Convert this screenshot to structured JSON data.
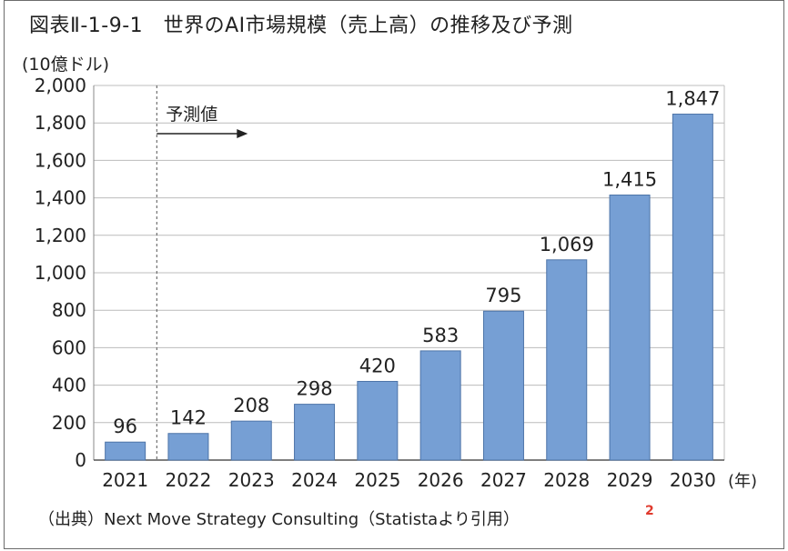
{
  "title": "図表Ⅱ-1-9-1　世界のAI市場規模（売上高）の推移及び予測",
  "unit_label": "(10億ドル)",
  "source": "（出典）Next Move Strategy Consulting（Statistaより引用）",
  "footnote_marker": "2",
  "forecast_label": "予測値",
  "x_unit_label": "(年)",
  "colors": {
    "bar": "#769fd4",
    "bar_edge": "#4d74a8",
    "grid": "#bcbcbc",
    "footnote": "#e03a2d"
  },
  "chart_data": {
    "type": "bar",
    "title": "世界のAI市場規模（売上高）の推移及び予測",
    "ylabel": "(10億ドル)",
    "xlabel": "(年)",
    "categories": [
      "2021",
      "2022",
      "2023",
      "2024",
      "2025",
      "2026",
      "2027",
      "2028",
      "2029",
      "2030"
    ],
    "values": [
      96,
      142,
      208,
      298,
      420,
      583,
      795,
      1069,
      1415,
      1847
    ],
    "value_labels": [
      "96",
      "142",
      "208",
      "298",
      "420",
      "583",
      "795",
      "1,069",
      "1,415",
      "1,847"
    ],
    "ylim": [
      0,
      2000
    ],
    "yticks": [
      0,
      200,
      400,
      600,
      800,
      1000,
      1200,
      1400,
      1600,
      1800,
      2000
    ],
    "ytick_labels": [
      "0",
      "200",
      "400",
      "600",
      "800",
      "1,000",
      "1,200",
      "1,400",
      "1,600",
      "1,800",
      "2,000"
    ],
    "grid": true,
    "forecast_start": "2022"
  }
}
